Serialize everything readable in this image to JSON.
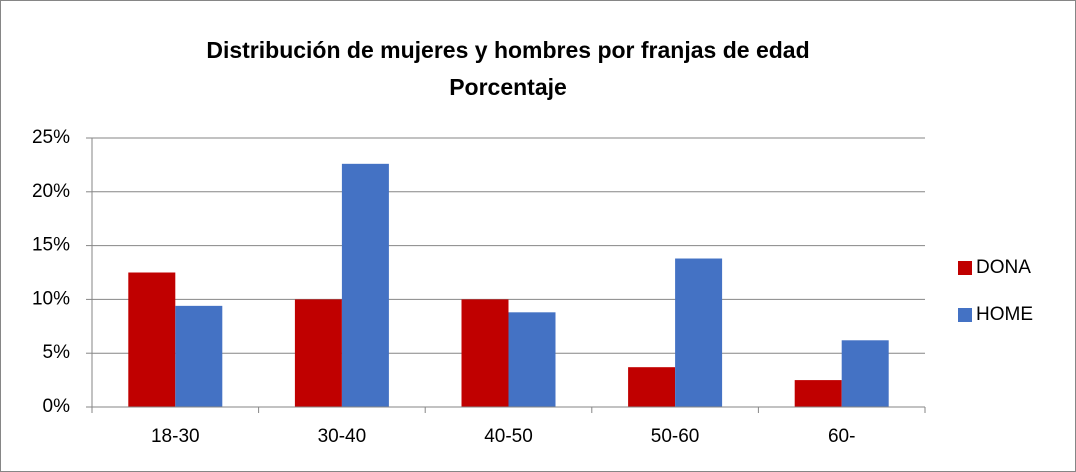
{
  "chart_data": {
    "type": "bar",
    "title": "Distribución de mujeres y hombres por franjas de edad",
    "subtitle": "Porcentaje",
    "categories": [
      "18-30",
      "30-40",
      "40-50",
      "50-60",
      "60-"
    ],
    "series": [
      {
        "name": "DONA",
        "color": "#c00000",
        "values": [
          12.5,
          10.0,
          10.0,
          3.7,
          2.5
        ]
      },
      {
        "name": "HOME",
        "color": "#4472c4",
        "values": [
          9.4,
          22.6,
          8.8,
          13.8,
          6.2
        ]
      }
    ],
    "ylim": [
      0,
      25
    ],
    "yticks": [
      {
        "value": 0,
        "label": "0%"
      },
      {
        "value": 5,
        "label": "5%"
      },
      {
        "value": 10,
        "label": "10%"
      },
      {
        "value": 15,
        "label": "15%"
      },
      {
        "value": 20,
        "label": "20%"
      },
      {
        "value": 25,
        "label": "25%"
      }
    ],
    "grid": true,
    "legend": "right"
  }
}
